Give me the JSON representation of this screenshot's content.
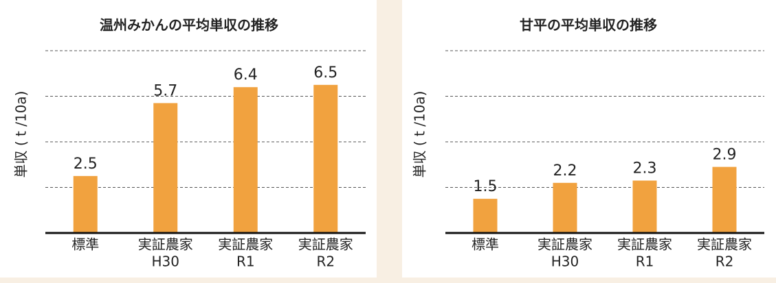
{
  "chart_data": [
    {
      "type": "bar",
      "title": "温州みかんの平均単収の推移",
      "y_label": "単収 ( t /10a)",
      "categories": [
        [
          "標準"
        ],
        [
          "実証農家",
          "H30"
        ],
        [
          "実証農家",
          "R1"
        ],
        [
          "実証農家",
          "R2"
        ]
      ],
      "values": [
        2.5,
        5.7,
        6.4,
        6.5
      ],
      "color": "#f1a23f",
      "ylim": [
        0,
        8.3
      ],
      "yticks": [
        2,
        4,
        6,
        8
      ],
      "grid": true
    },
    {
      "type": "bar",
      "title": "甘平の平均単収の推移",
      "y_label": "単収 ( t /10a)",
      "categories": [
        [
          "標準"
        ],
        [
          "実証農家",
          "H30"
        ],
        [
          "実証農家",
          "R1"
        ],
        [
          "実証農家",
          "R2"
        ]
      ],
      "values": [
        1.5,
        2.2,
        2.3,
        2.9
      ],
      "color": "#f1a23f",
      "ylim": [
        0,
        8.3
      ],
      "yticks": [
        2,
        4,
        6,
        8
      ],
      "grid": true
    }
  ]
}
